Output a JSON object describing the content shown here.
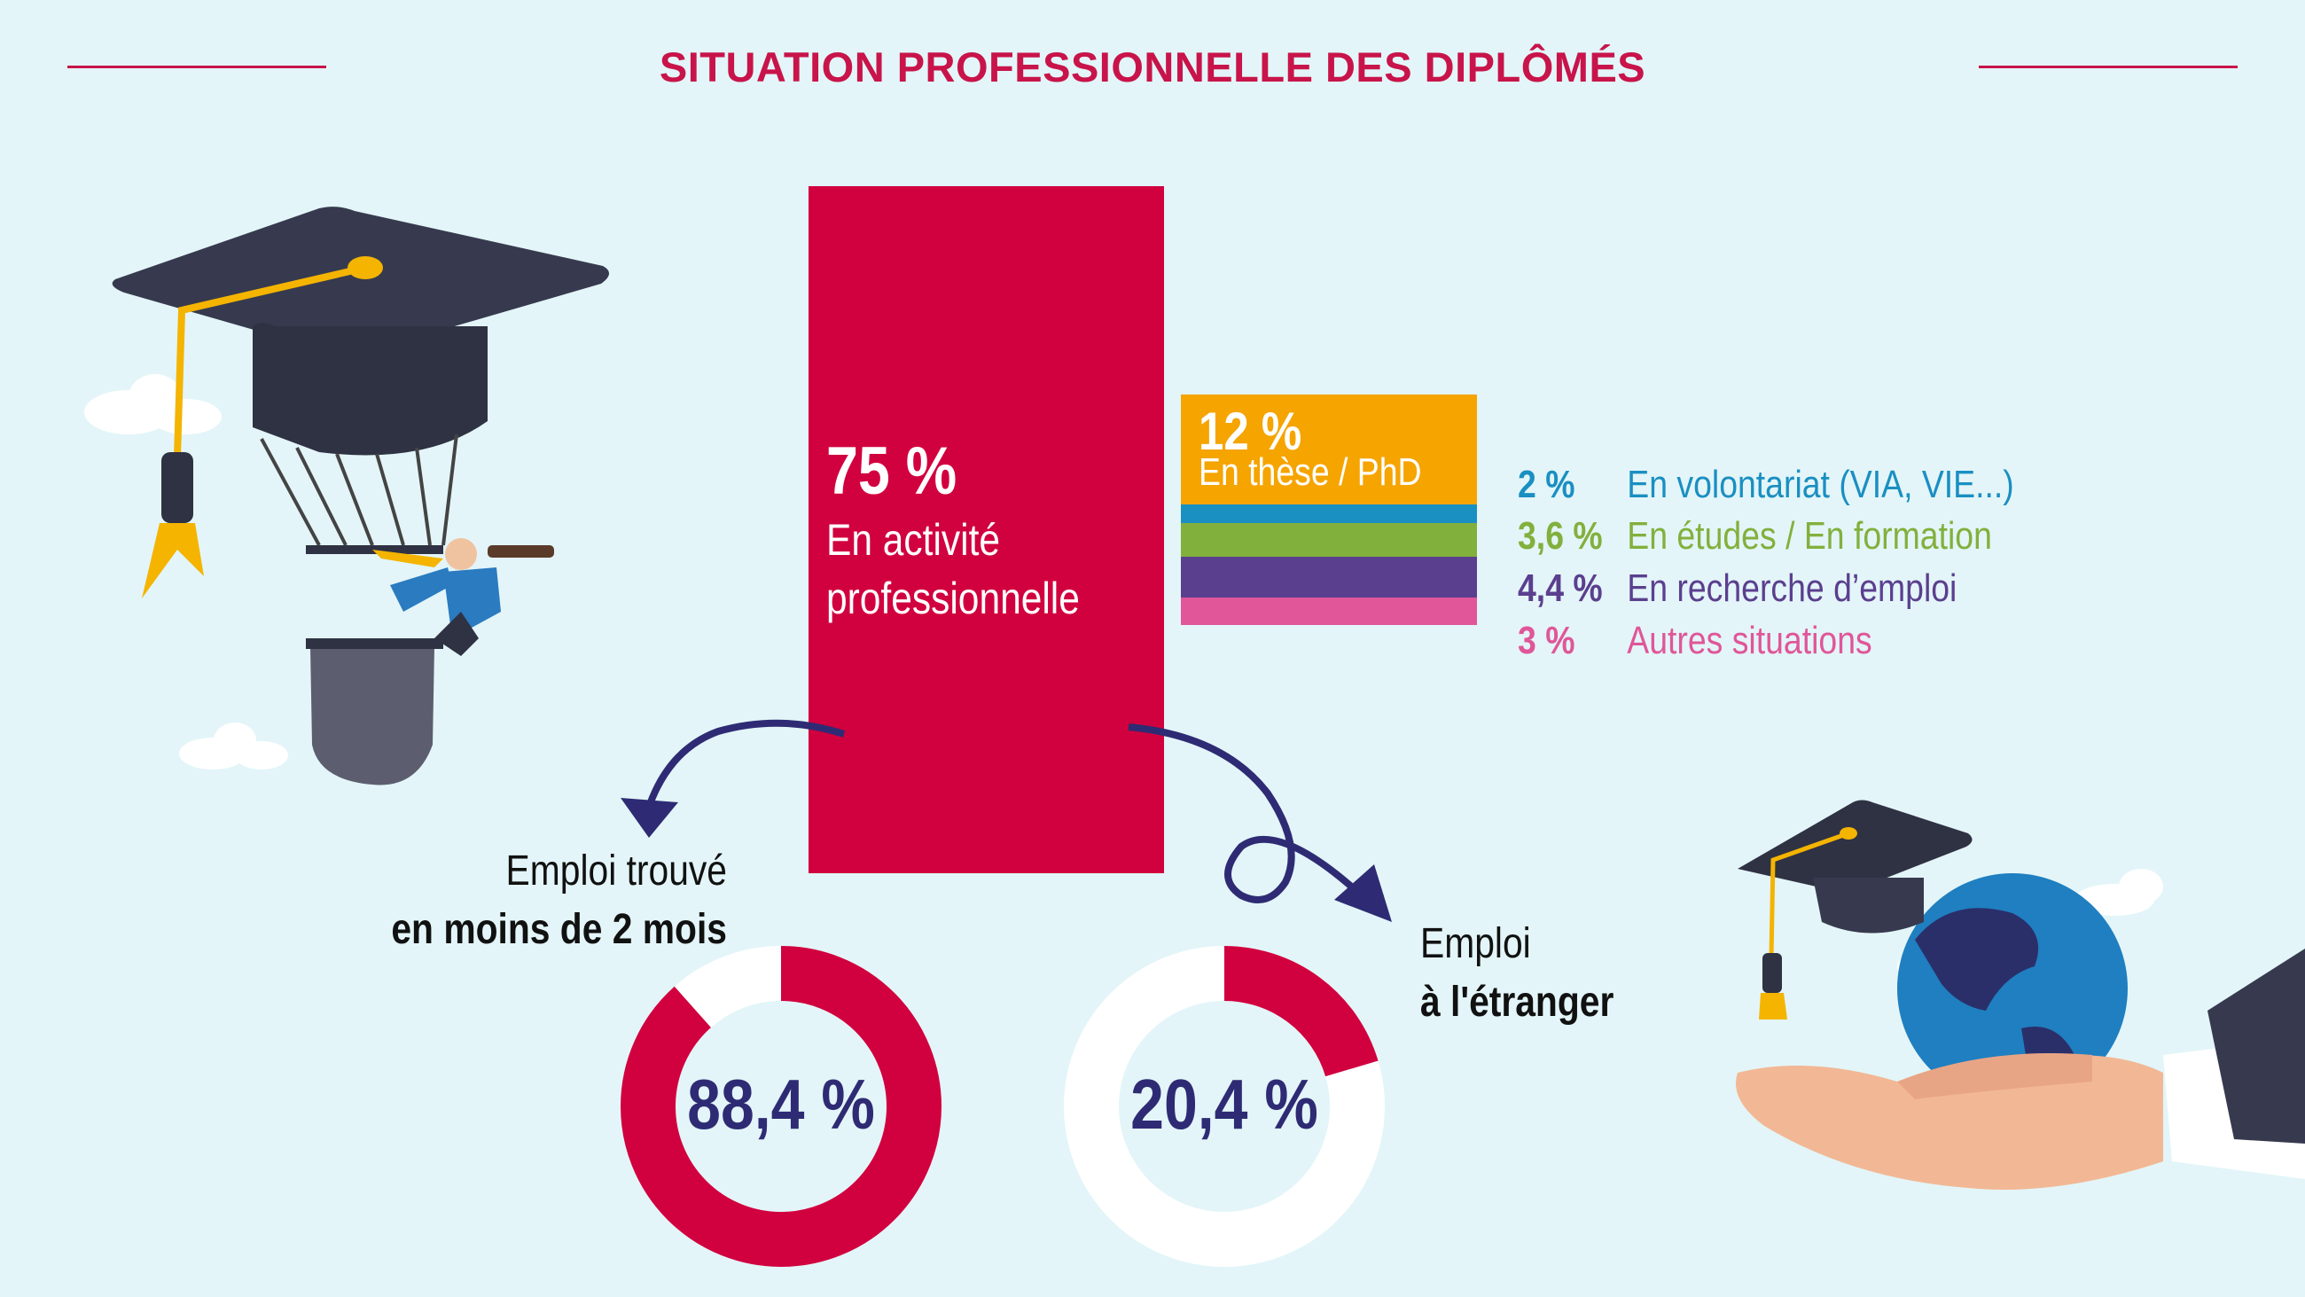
{
  "title": "SITUATION PROFESSIONNELLE DES DIPLÔMÉS",
  "colors": {
    "accent": "#d1003f",
    "orange": "#f5a400",
    "blue": "#1a8fc2",
    "green": "#82b03d",
    "purple": "#5b3f8f",
    "pink": "#e05699",
    "navy": "#2e2b74",
    "background": "#e3f5f8"
  },
  "main_bar": {
    "value": "75 %",
    "label_line1": "En activité",
    "label_line2": "professionnelle"
  },
  "thesis": {
    "value": "12 %",
    "label": "En thèse / PhD"
  },
  "legend": [
    {
      "value": "2 %",
      "label": "En volontariat (VIA, VIE...)",
      "color": "#1a8fc2"
    },
    {
      "value": "3,6 %",
      "label": "En études / En formation",
      "color": "#82b03d"
    },
    {
      "value": "4,4 %",
      "label": "En recherche d’emploi",
      "color": "#5b3f8f"
    },
    {
      "value": "3 %",
      "label": "Autres situations",
      "color": "#e05699"
    }
  ],
  "caption_left": {
    "line1": "Emploi trouvé",
    "line2": "en moins de 2 mois"
  },
  "caption_right": {
    "line1": "Emploi",
    "line2": "à l'étranger"
  },
  "donut_left": {
    "label": "88,4 %"
  },
  "donut_right": {
    "label": "20,4 %"
  },
  "chart_data": {
    "type": "bar",
    "title": "SITUATION PROFESSIONNELLE DES DIPLÔMÉS",
    "stacked_bar": [
      {
        "label": "En activité professionnelle",
        "value": 75,
        "color": "#d1003f"
      },
      {
        "label": "En thèse / PhD",
        "value": 12,
        "color": "#f5a400"
      },
      {
        "label": "En volontariat (VIA, VIE...)",
        "value": 2,
        "color": "#1a8fc2"
      },
      {
        "label": "En études / En formation",
        "value": 3.6,
        "color": "#82b03d"
      },
      {
        "label": "En recherche d’emploi",
        "value": 4.4,
        "color": "#5b3f8f"
      },
      {
        "label": "Autres situations",
        "value": 3,
        "color": "#e05699"
      }
    ],
    "donuts": [
      {
        "label": "Emploi trouvé en moins de 2 mois",
        "value": 88.4,
        "unit": "%"
      },
      {
        "label": "Emploi à l'étranger",
        "value": 20.4,
        "unit": "%"
      }
    ]
  }
}
